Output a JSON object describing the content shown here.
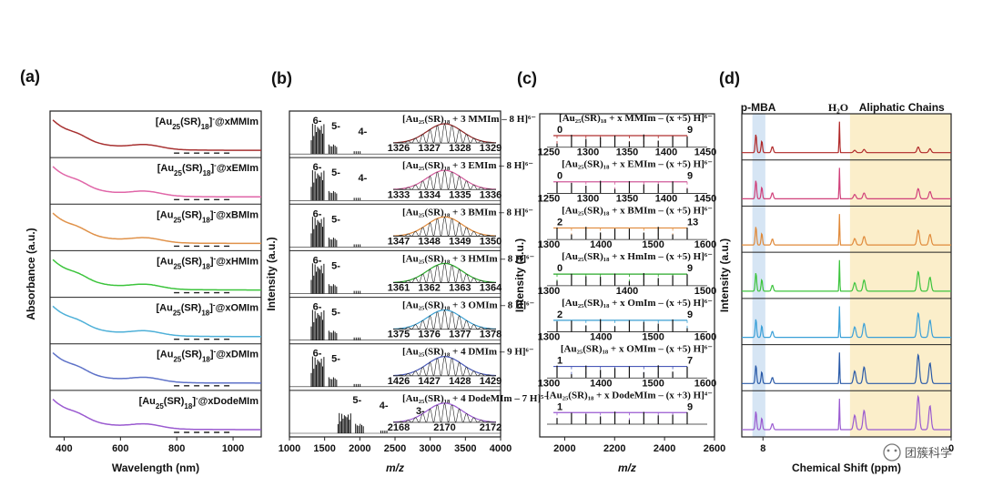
{
  "watermark": "团簇科学",
  "chart_data": [
    {
      "panel": "(a)",
      "type": "line",
      "xlabel": "Wavelength (nm)",
      "ylabel": "Absorbance (a.u.)",
      "xlim": [
        350,
        1100
      ],
      "xticks": [
        "400",
        "600",
        "800",
        "1000"
      ],
      "xtick_values": [
        400,
        600,
        800,
        1000
      ],
      "series": [
        {
          "name": "MMIm",
          "prefix": "[Au",
          "sub1": "25",
          "mid": "(SR)",
          "sub2": "18",
          "sup": "-",
          "suffix": "@xMMIm",
          "color": "#a83232"
        },
        {
          "name": "EMIm",
          "prefix": "[Au",
          "sub1": "25",
          "mid": "(SR)",
          "sub2": "18",
          "sup": "-",
          "suffix": "@xEMIm",
          "color": "#e066a8"
        },
        {
          "name": "BMIm",
          "prefix": "[Au",
          "sub1": "25",
          "mid": "(SR)",
          "sub2": "18",
          "sup": "-",
          "suffix": "@xBMIm",
          "color": "#e0924a"
        },
        {
          "name": "HMIm",
          "prefix": "[Au",
          "sub1": "25",
          "mid": "(SR)",
          "sub2": "18",
          "sup": "-",
          "suffix": "@xHMIm",
          "color": "#3cc43c"
        },
        {
          "name": "OMIm",
          "prefix": "[Au",
          "sub1": "25",
          "mid": "(SR)",
          "sub2": "18",
          "sup": "-",
          "suffix": "@xOMIm",
          "color": "#4eb0d8"
        },
        {
          "name": "DMIm",
          "prefix": "[Au",
          "sub1": "25",
          "mid": "(SR)",
          "sub2": "18",
          "sup": "-",
          "suffix": "@xDMIm",
          "color": "#5e72c8"
        },
        {
          "name": "DodeMIm",
          "prefix": "[Au",
          "sub1": "25",
          "mid": "(SR)",
          "sub2": "18",
          "sup": "-",
          "suffix": "@xDodeMIm",
          "color": "#9a5ad0"
        }
      ]
    },
    {
      "panel": "(b)",
      "type": "line",
      "xlabel": "m/z",
      "ylabel": "Intensity (a.u.)",
      "xlim": [
        1000,
        4000
      ],
      "xticks": [
        "1000",
        "1500",
        "2000",
        "2500",
        "3000",
        "3500",
        "4000"
      ],
      "xtick_values": [
        1000,
        1500,
        2000,
        2500,
        3000,
        3500,
        4000
      ],
      "series": [
        {
          "name": "MMIm",
          "color": "#8b2222",
          "charges": [
            "6-",
            "5-",
            "4-"
          ],
          "formula": "[Au₂₅(SR)₁₈ + 3 MMIm – 8 H]⁶⁻",
          "inset_ticks": [
            "1326",
            "1327",
            "1328",
            "1329"
          ]
        },
        {
          "name": "EMIm",
          "color": "#d05a9a",
          "charges": [
            "6-",
            "5-",
            "4-"
          ],
          "formula": "[Au₂₅(SR)₁₈ + 3 EMIm – 8 H]⁶⁻",
          "inset_ticks": [
            "1333",
            "1334",
            "1335",
            "1336"
          ]
        },
        {
          "name": "BMIm",
          "color": "#e08a3a",
          "charges": [
            "6-",
            "5-"
          ],
          "formula": "[Au₂₅(SR)₁₈ + 3 BMIm – 8 H]⁶⁻",
          "inset_ticks": [
            "1347",
            "1348",
            "1349",
            "1350"
          ]
        },
        {
          "name": "HMIm",
          "color": "#2aa82a",
          "charges": [
            "6-",
            "5-"
          ],
          "formula": "[Au₂₅(SR)₁₈ + 3 HMIm – 8 H]⁶⁻",
          "inset_ticks": [
            "1361",
            "1362",
            "1363",
            "1364"
          ]
        },
        {
          "name": "OMIm",
          "color": "#3a9ed0",
          "charges": [
            "6-",
            "5-"
          ],
          "formula": "[Au₂₅(SR)₁₈ + 3 OMIm – 8 H]⁶⁻",
          "inset_ticks": [
            "1375",
            "1376",
            "1377",
            "1378"
          ]
        },
        {
          "name": "DMIm",
          "color": "#4a5ab8",
          "charges": [
            "6-",
            "5-"
          ],
          "formula": "[Au₂₅(SR)₁₈ + 4 DMIm – 9 H]⁶⁻",
          "inset_ticks": [
            "1426",
            "1427",
            "1428",
            "1429"
          ]
        },
        {
          "name": "DodeMIm",
          "color": "#9a5ad0",
          "charges": [
            "5-",
            "4-",
            "3-"
          ],
          "formula": "[Au₂₅(SR)₁₈ + 4 DodeMIm – 7 H]⁵⁻",
          "inset_ticks": [
            "2168",
            "2170",
            "2172"
          ]
        }
      ]
    },
    {
      "panel": "(c)",
      "type": "line",
      "xlabel": "m/z",
      "ylabel": "Intensity (a.u.)",
      "xlim": [
        1900,
        2600
      ],
      "xticks": [
        "2000",
        "2200",
        "2400",
        "2600"
      ],
      "xtick_values": [
        2000,
        2200,
        2400,
        2600
      ],
      "series": [
        {
          "name": "MMIm",
          "color": "#b03030",
          "formula": "[Au₂₅(SR)₁₈ + x MMIm – (x +5) H]⁶⁻",
          "n_start": "0",
          "n_end": "9",
          "ticks": [
            "1250",
            "1300",
            "1350",
            "1400",
            "1450"
          ]
        },
        {
          "name": "EMIm",
          "color": "#d05a9a",
          "formula": "[Au₂₅(SR)₁₈ + x EMIm – (x +5) H]⁶⁻",
          "n_start": "0",
          "n_end": "9",
          "ticks": [
            "1250",
            "1300",
            "1350",
            "1400",
            "1450"
          ]
        },
        {
          "name": "BMIm",
          "color": "#e08a3a",
          "formula": "[Au₂₅(SR)₁₈ + x BMIm – (x +5) H]⁶⁻",
          "n_start": "2",
          "n_end": "13",
          "ticks": [
            "1300",
            "1400",
            "1500",
            "1600"
          ]
        },
        {
          "name": "HMIm",
          "color": "#2aa82a",
          "formula": "[Au₂₅(SR)₁₈ + x HmIm – (x +5) H]⁶⁻",
          "n_start": "0",
          "n_end": "9",
          "ticks": [
            "1300",
            "1400",
            "1500"
          ]
        },
        {
          "name": "OMIm",
          "color": "#3a9ed0",
          "formula": "[Au₂₅(SR)₁₈ + x OmIm – (x +5) H]⁶⁻",
          "n_start": "2",
          "n_end": "9",
          "ticks": [
            "1300",
            "1400",
            "1500",
            "1600"
          ]
        },
        {
          "name": "DMIm",
          "color": "#4a5ab8",
          "formula": "[Au₂₅(SR)₁₈ + x OMIm – (x +5) H]⁶⁻",
          "n_start": "1",
          "n_end": "7",
          "ticks": [
            "1300",
            "1400",
            "1500",
            "1600"
          ]
        },
        {
          "name": "DodeMIm",
          "color": "#9a5ad0",
          "formula": "[Au₂₅(SR)₁₈ + x DodeMIm – (x +3) H]⁴⁻",
          "n_start": "1",
          "n_end": "9",
          "ticks": []
        }
      ]
    },
    {
      "panel": "(d)",
      "type": "line",
      "xlabel": "Chemical Shift (ppm)",
      "ylabel": "Intensity (a.u.)",
      "xlim": [
        8.9,
        0
      ],
      "xticks": [
        "8",
        "0"
      ],
      "xtick_values": [
        8,
        0
      ],
      "annotations": {
        "pmba": "p-MBA",
        "water": "H₂O",
        "aliphatic": "Aliphatic Chains"
      },
      "series": [
        {
          "name": "MMIm",
          "color": "#b02828"
        },
        {
          "name": "EMIm",
          "color": "#d0407a"
        },
        {
          "name": "BMIm",
          "color": "#e08a3a"
        },
        {
          "name": "HMIm",
          "color": "#3cc43c"
        },
        {
          "name": "OMIm",
          "color": "#3aa0d8"
        },
        {
          "name": "DMIm",
          "color": "#2a5aa8"
        },
        {
          "name": "DodeMIm",
          "color": "#9a5ad0"
        }
      ]
    }
  ]
}
